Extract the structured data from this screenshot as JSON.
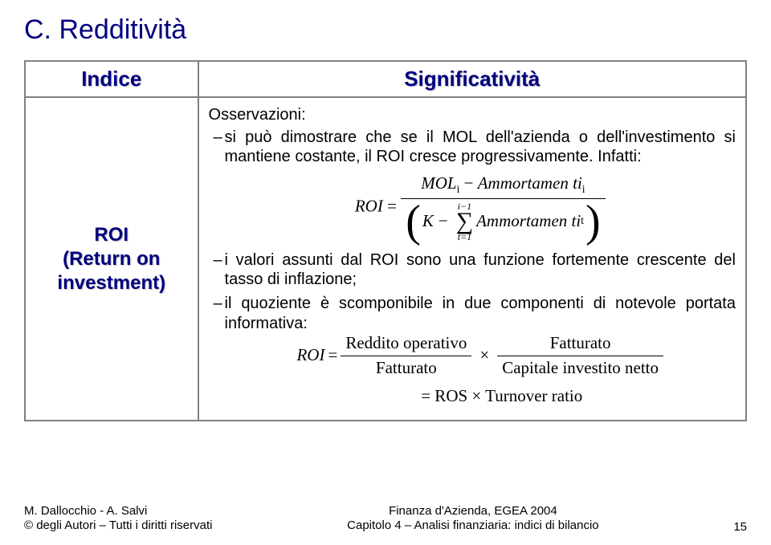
{
  "title": "C. Redditività",
  "table": {
    "header_left": "Indice",
    "header_right": "Significatività",
    "roi_line1": "ROI",
    "roi_line2": "(Return on",
    "roi_line3": "investment)",
    "obs_label": "Osservazioni:",
    "bullet1": "si può dimostrare che se il MOL dell'azienda o dell'investimento si mantiene costante, il ROI cresce progressivamente. Infatti:",
    "formula1": {
      "lhs": "ROI",
      "num_mol": "MOL",
      "num_sub": "i",
      "num_amm": "Ammortamen ti",
      "num_amm_sub": "i",
      "den_K": "K",
      "sum_top": "i−1",
      "sum_bot": "t=1",
      "den_amm": "Ammortamen ti",
      "den_amm_sub": "t"
    },
    "bullet2": "i valori assunti dal ROI sono una funzione fortemente crescente del tasso di inflazione;",
    "bullet3": "il quoziente è scomponibile in due componenti di notevole portata informativa:",
    "formula2": {
      "lhs": "ROI",
      "f1_num": "Reddito operativo",
      "f1_den": "Fatturato",
      "f2_num": "Fatturato",
      "f2_den": "Capitale investito netto",
      "line2": "= ROS × Turnover ratio"
    }
  },
  "footer": {
    "l1": "M. Dallocchio - A. Salvi",
    "l2": "© degli Autori – Tutti i diritti riservati",
    "c1": "Finanza d'Azienda, EGEA 2004",
    "c2": "Capitolo 4 – Analisi finanziaria: indici di bilancio",
    "page": "15"
  }
}
